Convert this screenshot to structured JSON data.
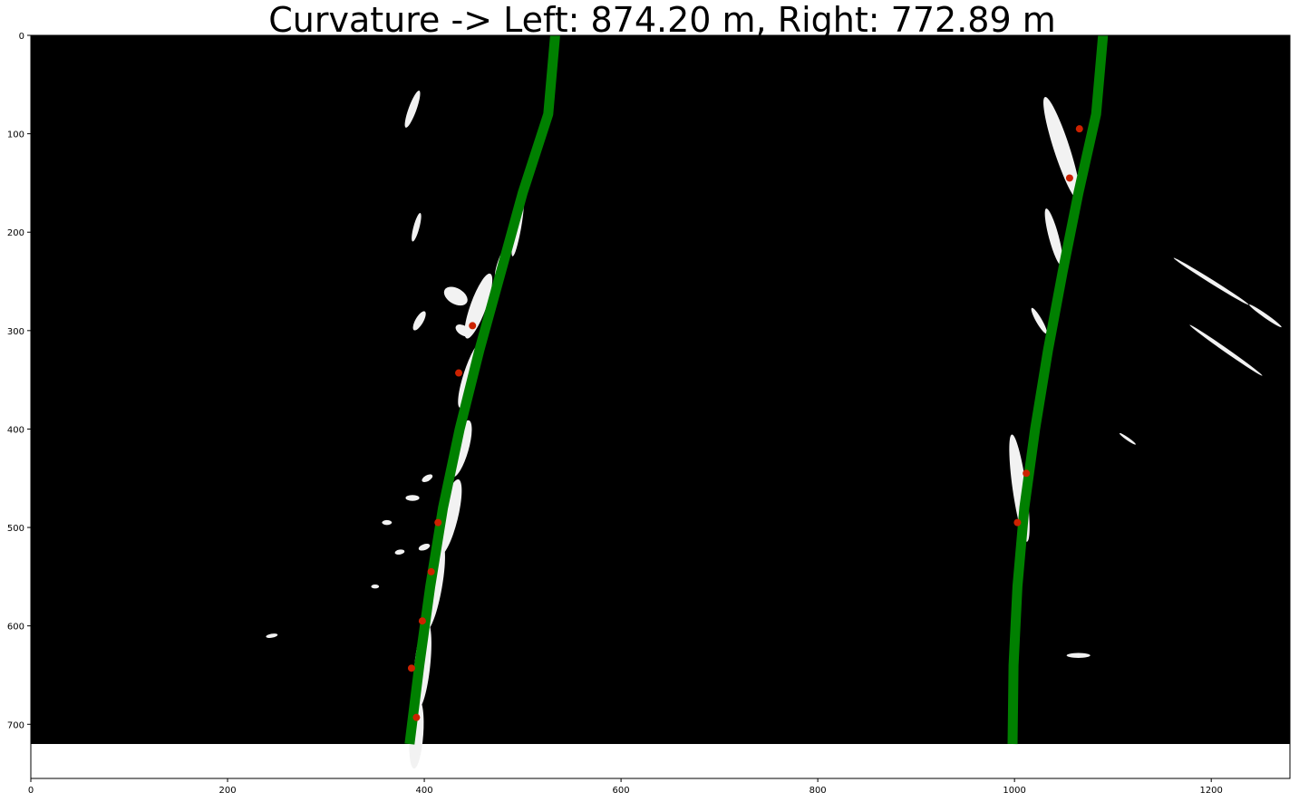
{
  "chart_data": {
    "type": "line",
    "title": "Curvature -> Left: 874.20 m, Right: 772.89 m",
    "xlabel": "",
    "ylabel": "",
    "xlim": [
      0,
      1280
    ],
    "ylim": [
      755,
      0
    ],
    "image_extent": {
      "x": [
        0,
        1280
      ],
      "y": [
        0,
        720
      ]
    },
    "grid": false,
    "x_ticks": [
      0,
      200,
      400,
      600,
      800,
      1000,
      1200
    ],
    "y_ticks": [
      0,
      100,
      200,
      300,
      400,
      500,
      600,
      700
    ],
    "series": [
      {
        "color": "#008000",
        "x": [
          385,
          395,
          406,
          419,
          436,
          456,
          478,
          500,
          526,
          533
        ],
        "y": [
          720,
          640,
          560,
          480,
          400,
          320,
          240,
          160,
          80,
          0
        ]
      },
      {
        "color": "#008000",
        "x": [
          998,
          999,
          1003,
          1010,
          1021,
          1034,
          1049,
          1065,
          1083,
          1090
        ],
        "y": [
          720,
          640,
          560,
          480,
          400,
          320,
          240,
          160,
          80,
          0
        ]
      }
    ],
    "points": {
      "color": "#cc2200",
      "x": [
        392,
        387,
        398,
        407,
        414,
        435,
        449,
        1012,
        1003,
        1056,
        1066
      ],
      "y": [
        693,
        643,
        595,
        545,
        495,
        343,
        295,
        445,
        495,
        145,
        95
      ]
    },
    "lane_pixel_blobs": [
      {
        "x": 392,
        "y": 710,
        "w": 14,
        "h": 70,
        "angle": -4
      },
      {
        "x": 398,
        "y": 640,
        "w": 16,
        "h": 90,
        "angle": -6
      },
      {
        "x": 410,
        "y": 560,
        "w": 16,
        "h": 90,
        "angle": -10
      },
      {
        "x": 425,
        "y": 490,
        "w": 18,
        "h": 80,
        "angle": -14
      },
      {
        "x": 437,
        "y": 420,
        "w": 16,
        "h": 60,
        "angle": -16
      },
      {
        "x": 447,
        "y": 345,
        "w": 14,
        "h": 70,
        "angle": -18
      },
      {
        "x": 455,
        "y": 275,
        "w": 16,
        "h": 70,
        "angle": -20
      },
      {
        "x": 480,
        "y": 230,
        "w": 10,
        "h": 40,
        "angle": -20
      },
      {
        "x": 432,
        "y": 265,
        "w": 26,
        "h": 16,
        "angle": -30
      },
      {
        "x": 440,
        "y": 300,
        "w": 18,
        "h": 10,
        "angle": -30
      },
      {
        "x": 395,
        "y": 290,
        "w": 8,
        "h": 22,
        "angle": -30
      },
      {
        "x": 388,
        "y": 75,
        "w": 8,
        "h": 40,
        "angle": -20
      },
      {
        "x": 392,
        "y": 195,
        "w": 6,
        "h": 30,
        "angle": -15
      },
      {
        "x": 520,
        "y": 100,
        "w": 5,
        "h": 40,
        "angle": -10
      },
      {
        "x": 495,
        "y": 195,
        "w": 7,
        "h": 60,
        "angle": -10
      },
      {
        "x": 388,
        "y": 470,
        "w": 14,
        "h": 6,
        "angle": 0
      },
      {
        "x": 362,
        "y": 495,
        "w": 10,
        "h": 5,
        "angle": 0
      },
      {
        "x": 400,
        "y": 520,
        "w": 12,
        "h": 6,
        "angle": 20
      },
      {
        "x": 375,
        "y": 525,
        "w": 10,
        "h": 5,
        "angle": 10
      },
      {
        "x": 350,
        "y": 560,
        "w": 8,
        "h": 4,
        "angle": 0
      },
      {
        "x": 403,
        "y": 450,
        "w": 12,
        "h": 6,
        "angle": 30
      },
      {
        "x": 245,
        "y": 610,
        "w": 12,
        "h": 4,
        "angle": 10
      },
      {
        "x": 1048,
        "y": 115,
        "w": 16,
        "h": 110,
        "angle": 18
      },
      {
        "x": 1040,
        "y": 205,
        "w": 10,
        "h": 60,
        "angle": 15
      },
      {
        "x": 1005,
        "y": 460,
        "w": 14,
        "h": 110,
        "angle": 8
      },
      {
        "x": 1025,
        "y": 290,
        "w": 6,
        "h": 30,
        "angle": 30
      },
      {
        "x": 1065,
        "y": 630,
        "w": 24,
        "h": 5,
        "angle": 0
      },
      {
        "x": 1200,
        "y": 250,
        "w": 4,
        "h": 90,
        "angle": 58
      },
      {
        "x": 1215,
        "y": 320,
        "w": 4,
        "h": 90,
        "angle": 55
      },
      {
        "x": 1255,
        "y": 285,
        "w": 4,
        "h": 40,
        "angle": 55
      },
      {
        "x": 1115,
        "y": 410,
        "w": 3,
        "h": 20,
        "angle": 55
      }
    ]
  }
}
